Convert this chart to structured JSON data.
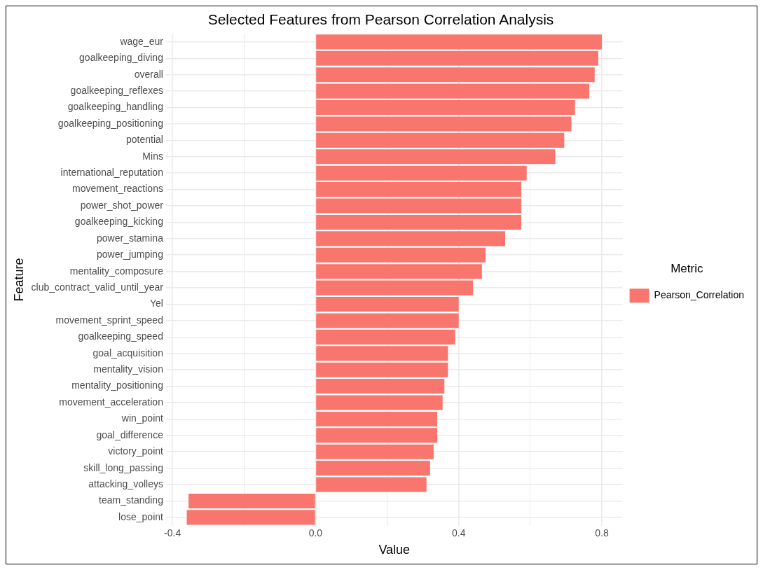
{
  "chart_data": {
    "type": "bar",
    "orientation": "horizontal",
    "title": "Selected Features from Pearson Correlation Analysis",
    "xlabel": "Value",
    "ylabel": "Feature",
    "legend_title": "Metric",
    "categories": [
      "wage_eur",
      "goalkeeping_diving",
      "overall",
      "goalkeeping_reflexes",
      "goalkeeping_handling",
      "goalkeeping_positioning",
      "potential",
      "Mins",
      "international_reputation",
      "movement_reactions",
      "power_shot_power",
      "goalkeeping_kicking",
      "power_stamina",
      "power_jumping",
      "mentality_composure",
      "club_contract_valid_until_year",
      "Yel",
      "movement_sprint_speed",
      "goalkeeping_speed",
      "goal_acquisition",
      "mentality_vision",
      "mentality_positioning",
      "movement_acceleration",
      "win_point",
      "goal_difference",
      "victory_point",
      "skill_long_passing",
      "attacking_volleys",
      "team_standing",
      "lose_point"
    ],
    "series": [
      {
        "name": "Pearson_Correlation",
        "color": "#f8766d",
        "values": [
          0.8,
          0.79,
          0.78,
          0.765,
          0.725,
          0.715,
          0.695,
          0.67,
          0.59,
          0.575,
          0.575,
          0.575,
          0.53,
          0.475,
          0.465,
          0.44,
          0.4,
          0.4,
          0.39,
          0.37,
          0.37,
          0.36,
          0.355,
          0.34,
          0.34,
          0.33,
          0.32,
          0.31,
          -0.355,
          -0.36
        ]
      }
    ],
    "xlim": [
      -0.418,
      0.858
    ],
    "xticks": [
      -0.4,
      {
        "value": -0.2,
        "label": null
      },
      {
        "value": 0,
        "label": "0.0"
      },
      {
        "value": 0.2,
        "label": null
      },
      0.4,
      {
        "value": 0.6,
        "label": null
      },
      0.8
    ],
    "grid": true,
    "legend": "right"
  }
}
